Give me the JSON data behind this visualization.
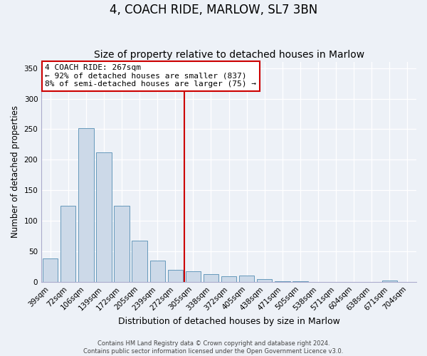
{
  "title": "4, COACH RIDE, MARLOW, SL7 3BN",
  "subtitle": "Size of property relative to detached houses in Marlow",
  "xlabel": "Distribution of detached houses by size in Marlow",
  "ylabel": "Number of detached properties",
  "bar_labels": [
    "39sqm",
    "72sqm",
    "106sqm",
    "139sqm",
    "172sqm",
    "205sqm",
    "239sqm",
    "272sqm",
    "305sqm",
    "338sqm",
    "372sqm",
    "405sqm",
    "438sqm",
    "471sqm",
    "505sqm",
    "538sqm",
    "571sqm",
    "604sqm",
    "638sqm",
    "671sqm",
    "704sqm"
  ],
  "bar_values": [
    38,
    124,
    252,
    212,
    124,
    67,
    35,
    20,
    17,
    13,
    9,
    10,
    5,
    1,
    1,
    0,
    0,
    0,
    0,
    2,
    0
  ],
  "bar_color_fill": "#ccd9e8",
  "bar_color_edge": "#6699bb",
  "vline_x": 7.5,
  "vline_color": "#cc0000",
  "annotation_title": "4 COACH RIDE: 267sqm",
  "annotation_line1": "← 92% of detached houses are smaller (837)",
  "annotation_line2": "8% of semi-detached houses are larger (75) →",
  "annotation_box_color": "#cc0000",
  "ylim": [
    0,
    360
  ],
  "yticks": [
    0,
    50,
    100,
    150,
    200,
    250,
    300,
    350
  ],
  "background_color": "#edf1f7",
  "plot_background": "#edf1f7",
  "grid_color": "#ffffff",
  "footer_line1": "Contains HM Land Registry data © Crown copyright and database right 2024.",
  "footer_line2": "Contains public sector information licensed under the Open Government Licence v3.0.",
  "title_fontsize": 12,
  "subtitle_fontsize": 10,
  "xlabel_fontsize": 9,
  "ylabel_fontsize": 8.5,
  "tick_fontsize": 7.5,
  "annot_fontsize": 8
}
